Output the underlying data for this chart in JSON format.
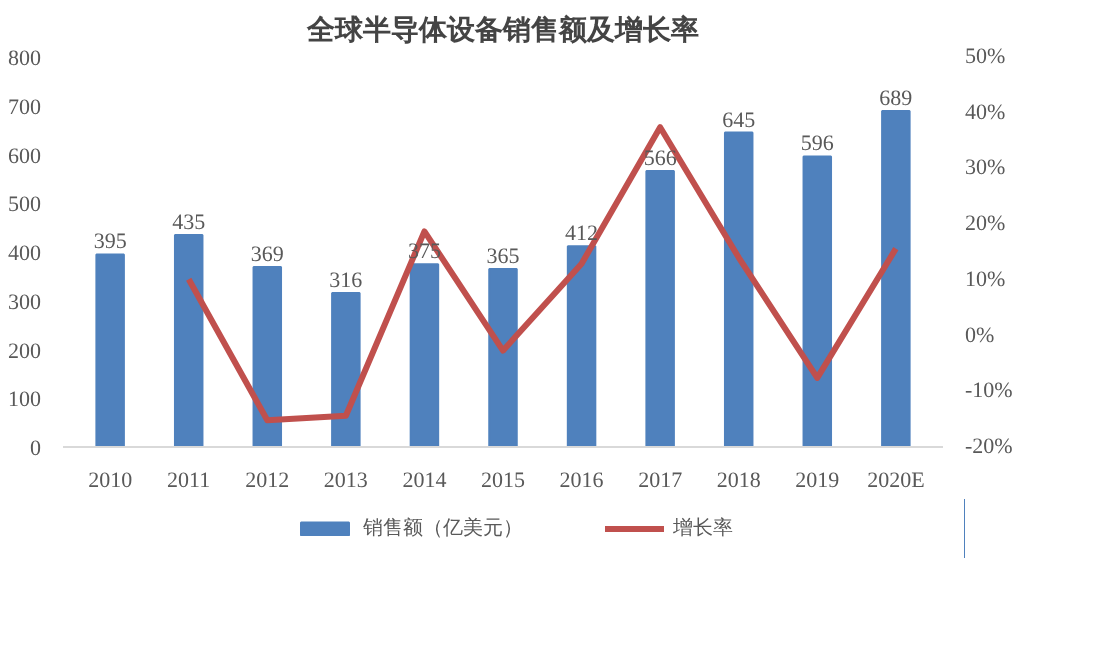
{
  "chart_data": {
    "type": "bar",
    "title": "全球半导体设备销售额及增长率",
    "categories": [
      "2010",
      "2011",
      "2012",
      "2013",
      "2014",
      "2015",
      "2016",
      "2017",
      "2018",
      "2019",
      "2020E"
    ],
    "series": [
      {
        "name": "销售额（亿美元）",
        "type": "bar",
        "color": "#4f81bd",
        "values": [
          395,
          435,
          369,
          316,
          375,
          365,
          412,
          566,
          645,
          596,
          689
        ],
        "value_labels": [
          "395",
          "435",
          "369",
          "316",
          "375",
          "365",
          "412",
          "566",
          "645",
          "596",
          "689"
        ]
      },
      {
        "name": "增长率",
        "type": "line",
        "axis": "y2",
        "color": "#c0504d",
        "values": [
          null,
          10.1,
          -15.2,
          -14.4,
          18.7,
          -2.7,
          12.9,
          37.4,
          14.0,
          -7.6,
          15.6
        ]
      }
    ],
    "ylim": [
      0,
      800
    ],
    "yticks": [
      0,
      100,
      200,
      300,
      400,
      500,
      600,
      700,
      800
    ],
    "y2lim": [
      -20,
      50
    ],
    "y2ticks": [
      {
        "value": -20,
        "label": "-20%"
      },
      {
        "value": -10,
        "label": "-10%"
      },
      {
        "value": 0,
        "label": "0%"
      },
      {
        "value": 10,
        "label": "10%"
      },
      {
        "value": 20,
        "label": "20%"
      },
      {
        "value": 30,
        "label": "30%"
      },
      {
        "value": 40,
        "label": "40%"
      },
      {
        "value": 50,
        "label": "50%"
      }
    ],
    "grid": false,
    "legend": "bottom",
    "marker": "none",
    "line_style": "solid"
  }
}
